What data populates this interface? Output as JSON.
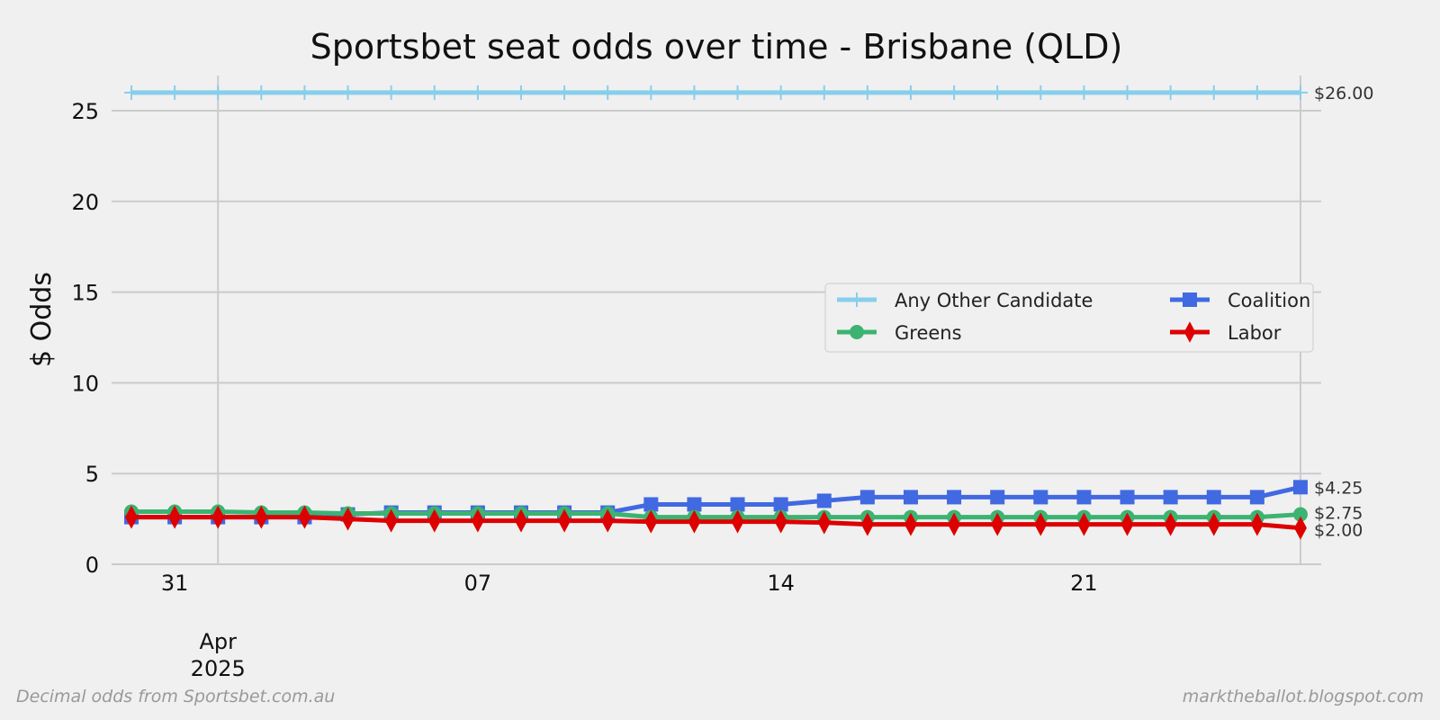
{
  "chart_data": {
    "type": "line",
    "title": "Sportsbet seat odds over time - Brisbane (QLD)",
    "xlabel": "",
    "ylabel": "$ Odds",
    "ylim": [
      0,
      27
    ],
    "yticks": [
      0,
      5,
      10,
      15,
      20,
      25
    ],
    "x_start_date": "2025-03-30",
    "x_days": [
      0,
      1,
      2,
      3,
      4,
      5,
      6,
      7,
      8,
      9,
      10,
      11,
      12,
      13,
      14,
      15,
      16,
      17,
      18,
      19,
      20,
      21,
      22,
      23,
      24,
      25,
      26,
      27
    ],
    "xticks": [
      {
        "day": 1,
        "label": "31"
      },
      {
        "day": 8,
        "label": "07"
      },
      {
        "day": 15,
        "label": "14"
      },
      {
        "day": 22,
        "label": "21"
      }
    ],
    "month_label": {
      "day": 2,
      "line1": "Apr",
      "line2": "2025"
    },
    "grid": true,
    "legend_placement": "center-right",
    "series": [
      {
        "name": "Any Other Candidate",
        "color": "#87ceeb",
        "marker": "plus",
        "end_label": "$26.00",
        "values": [
          26,
          26,
          26,
          26,
          26,
          26,
          26,
          26,
          26,
          26,
          26,
          26,
          26,
          26,
          26,
          26,
          26,
          26,
          26,
          26,
          26,
          26,
          26,
          26,
          26,
          26,
          26,
          26
        ]
      },
      {
        "name": "Coalition",
        "color": "#4169e1",
        "marker": "square",
        "end_label": "$4.25",
        "values": [
          2.6,
          2.6,
          2.6,
          2.6,
          2.6,
          2.75,
          2.85,
          2.85,
          2.85,
          2.85,
          2.85,
          2.85,
          3.3,
          3.3,
          3.3,
          3.3,
          3.5,
          3.7,
          3.7,
          3.7,
          3.7,
          3.7,
          3.7,
          3.7,
          3.7,
          3.7,
          3.7,
          4.25
        ]
      },
      {
        "name": "Greens",
        "color": "#3cb371",
        "marker": "circle",
        "end_label": "$2.75",
        "values": [
          2.9,
          2.9,
          2.9,
          2.85,
          2.85,
          2.8,
          2.8,
          2.8,
          2.8,
          2.8,
          2.8,
          2.8,
          2.6,
          2.6,
          2.6,
          2.6,
          2.6,
          2.6,
          2.6,
          2.6,
          2.6,
          2.6,
          2.6,
          2.6,
          2.6,
          2.6,
          2.6,
          2.75
        ]
      },
      {
        "name": "Labor",
        "color": "#dd0000",
        "marker": "diamond",
        "end_label": "$2.00",
        "values": [
          2.6,
          2.6,
          2.6,
          2.6,
          2.6,
          2.5,
          2.4,
          2.4,
          2.4,
          2.4,
          2.4,
          2.4,
          2.35,
          2.35,
          2.35,
          2.35,
          2.3,
          2.2,
          2.2,
          2.2,
          2.2,
          2.2,
          2.2,
          2.2,
          2.2,
          2.2,
          2.2,
          2.0
        ]
      }
    ],
    "legend_order": [
      0,
      2,
      1,
      3
    ]
  },
  "footer": {
    "left": "Decimal odds from Sportsbet.com.au",
    "right": "marktheballot.blogspot.com"
  }
}
